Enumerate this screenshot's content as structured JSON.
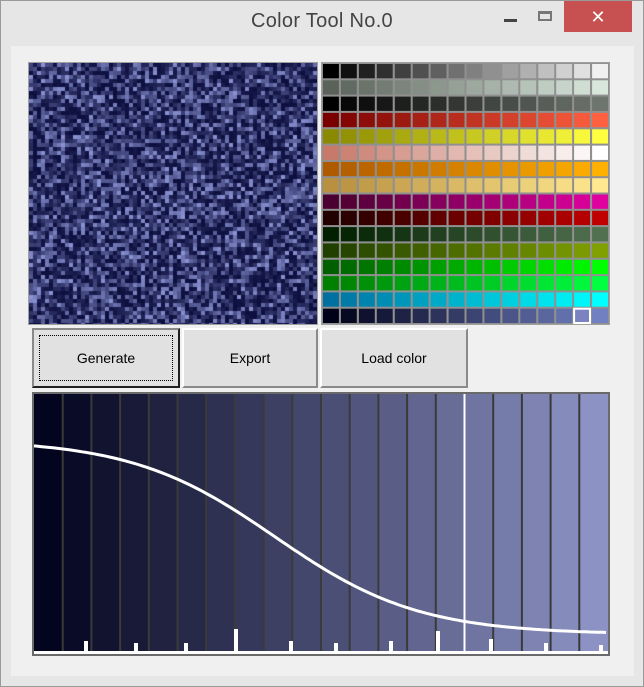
{
  "window": {
    "title": "Color Tool No.0"
  },
  "buttons": {
    "generate": "Generate",
    "export": "Export",
    "load_color": "Load color"
  },
  "icons": {
    "minimize": "minimize-icon",
    "maximize": "maximize-icon",
    "close": "close-icon"
  },
  "colors": {
    "noise_base": "#0d0f3f",
    "noise_light": "#8a92d2",
    "palette_rows": [
      [
        "#000000",
        "#f0f0f0"
      ],
      [
        "#5a625a",
        "#d8e6dc"
      ],
      [
        "#000000",
        "#6e746e"
      ],
      [
        "#7a0000",
        "#ff6040"
      ],
      [
        "#8a8a00",
        "#ffff40"
      ],
      [
        "#c87a6a",
        "#ffffff"
      ],
      [
        "#b05a00",
        "#ffb000"
      ],
      [
        "#b89040",
        "#ffe890"
      ],
      [
        "#4a0030",
        "#e000a0"
      ],
      [
        "#200000",
        "#c00000"
      ],
      [
        "#002000",
        "#507050"
      ],
      [
        "#204000",
        "#80a000"
      ],
      [
        "#006000",
        "#00ff00"
      ],
      [
        "#008000",
        "#00ff40"
      ],
      [
        "#0070a0",
        "#00ffff"
      ],
      [
        "#000018",
        "#7080c0"
      ]
    ],
    "ramp_start": "#03041d",
    "ramp_end": "#8c92c4",
    "selected_swatch": "#7a82c0"
  }
}
